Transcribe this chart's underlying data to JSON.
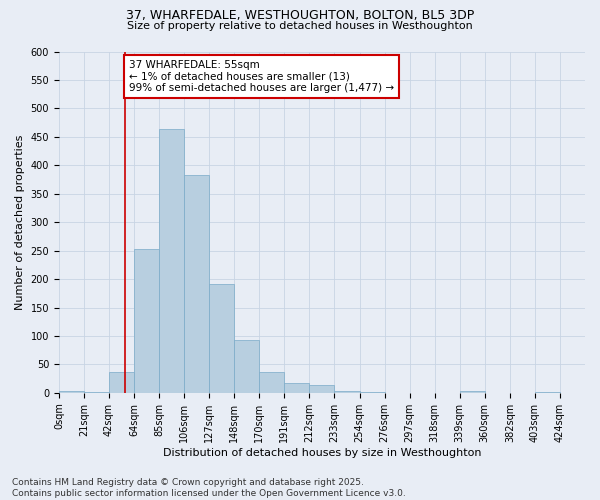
{
  "title": "37, WHARFEDALE, WESTHOUGHTON, BOLTON, BL5 3DP",
  "subtitle": "Size of property relative to detached houses in Westhoughton",
  "xlabel": "Distribution of detached houses by size in Westhoughton",
  "ylabel": "Number of detached properties",
  "footer_line1": "Contains HM Land Registry data © Crown copyright and database right 2025.",
  "footer_line2": "Contains public sector information licensed under the Open Government Licence v3.0.",
  "bin_labels": [
    "0sqm",
    "21sqm",
    "42sqm",
    "64sqm",
    "85sqm",
    "106sqm",
    "127sqm",
    "148sqm",
    "170sqm",
    "191sqm",
    "212sqm",
    "233sqm",
    "254sqm",
    "276sqm",
    "297sqm",
    "318sqm",
    "339sqm",
    "360sqm",
    "382sqm",
    "403sqm",
    "424sqm"
  ],
  "bar_values": [
    3,
    2,
    36,
    253,
    464,
    383,
    191,
    93,
    36,
    18,
    13,
    4,
    1,
    0,
    0,
    0,
    4,
    0,
    0,
    1,
    0
  ],
  "bar_color": "#b8cfe0",
  "bar_edge_color": "#7aaac8",
  "grid_color": "#c8d4e4",
  "background_color": "#e8edf5",
  "annotation_text": "37 WHARFEDALE: 55sqm\n← 1% of detached houses are smaller (13)\n99% of semi-detached houses are larger (1,477) →",
  "annotation_box_color": "#ffffff",
  "annotation_box_edge": "#cc0000",
  "vline_color": "#cc0000",
  "vline_x_index": 2.64,
  "ylim": [
    0,
    600
  ],
  "yticks": [
    0,
    50,
    100,
    150,
    200,
    250,
    300,
    350,
    400,
    450,
    500,
    550,
    600
  ],
  "title_fontsize": 9,
  "subtitle_fontsize": 8,
  "axis_label_fontsize": 8,
  "tick_fontsize": 7,
  "annotation_fontsize": 7.5,
  "footer_fontsize": 6.5
}
